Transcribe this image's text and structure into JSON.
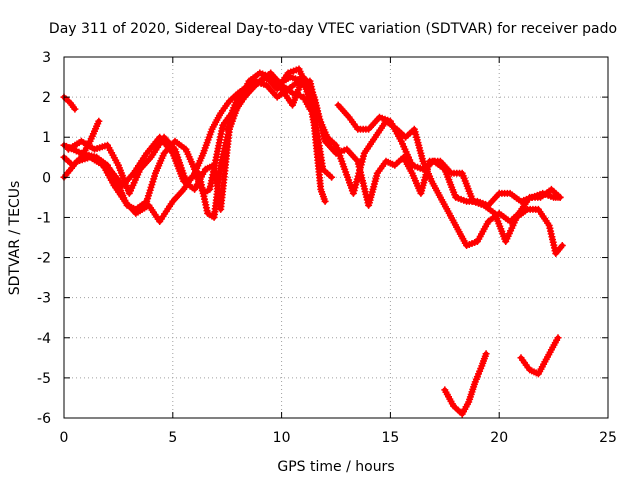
{
  "chart_data": {
    "type": "scatter",
    "title": "Day 311 of 2020, Sidereal Day-to-day VTEC variation (SDTVAR) for receiver pado",
    "xlabel": "GPS time / hours",
    "ylabel": "SDTVAR / TECUs",
    "xlim": [
      0,
      25
    ],
    "ylim": [
      -6,
      3
    ],
    "xticks": [
      0,
      5,
      10,
      15,
      20,
      25
    ],
    "yticks": [
      -6,
      -5,
      -4,
      -3,
      -2,
      -1,
      0,
      1,
      2,
      3
    ],
    "grid": true,
    "marker": "plus",
    "color": "#ff0000",
    "series": [
      {
        "name": "trace-1",
        "points": [
          [
            0.0,
            0.5
          ],
          [
            0.4,
            0.3
          ],
          [
            0.8,
            0.5
          ],
          [
            1.2,
            0.9
          ],
          [
            1.6,
            1.4
          ]
        ]
      },
      {
        "name": "trace-2",
        "points": [
          [
            0.0,
            2.0
          ],
          [
            0.3,
            1.85
          ],
          [
            0.5,
            1.7
          ]
        ]
      },
      {
        "name": "trace-3",
        "points": [
          [
            0.0,
            0.0
          ],
          [
            0.6,
            0.4
          ],
          [
            1.2,
            0.5
          ],
          [
            1.8,
            0.3
          ],
          [
            2.3,
            -0.2
          ],
          [
            2.8,
            -0.6
          ],
          [
            3.3,
            -0.9
          ],
          [
            3.9,
            -0.7
          ],
          [
            4.4,
            -1.1
          ],
          [
            5.0,
            -0.6
          ],
          [
            5.5,
            -0.3
          ],
          [
            6.0,
            0.1
          ],
          [
            6.4,
            0.6
          ],
          [
            6.8,
            1.2
          ],
          [
            7.2,
            1.6
          ],
          [
            7.6,
            1.9
          ],
          [
            8.0,
            2.1
          ],
          [
            8.5,
            2.3
          ],
          [
            9.0,
            2.4
          ],
          [
            9.5,
            2.6
          ],
          [
            10.0,
            2.3
          ],
          [
            10.5,
            2.1
          ],
          [
            11.0,
            2.0
          ],
          [
            11.3,
            1.7
          ]
        ]
      },
      {
        "name": "trace-4",
        "points": [
          [
            0.0,
            0.8
          ],
          [
            0.8,
            0.6
          ],
          [
            1.5,
            0.5
          ],
          [
            2.0,
            0.3
          ],
          [
            2.5,
            -0.2
          ],
          [
            2.9,
            -0.7
          ],
          [
            3.3,
            -0.8
          ],
          [
            3.8,
            -0.6
          ],
          [
            4.2,
            0.1
          ],
          [
            4.6,
            0.6
          ],
          [
            5.1,
            0.9
          ],
          [
            5.6,
            0.7
          ],
          [
            6.0,
            0.2
          ],
          [
            6.4,
            -0.4
          ],
          [
            6.7,
            -0.3
          ],
          [
            7.0,
            0.5
          ],
          [
            7.3,
            1.3
          ],
          [
            7.7,
            1.6
          ],
          [
            8.0,
            2.0
          ],
          [
            8.6,
            2.2
          ],
          [
            9.2,
            2.5
          ],
          [
            9.8,
            2.3
          ],
          [
            10.4,
            2.5
          ],
          [
            11.0,
            2.4
          ],
          [
            11.5,
            1.6
          ],
          [
            11.9,
            0.2
          ],
          [
            12.3,
            0.0
          ]
        ]
      },
      {
        "name": "trace-5",
        "points": [
          [
            0.2,
            0.7
          ],
          [
            0.8,
            0.9
          ],
          [
            1.4,
            0.7
          ],
          [
            2.0,
            0.8
          ],
          [
            2.5,
            0.3
          ],
          [
            3.0,
            -0.4
          ],
          [
            3.5,
            0.2
          ],
          [
            4.0,
            0.5
          ],
          [
            4.6,
            1.0
          ],
          [
            5.1,
            0.7
          ],
          [
            5.6,
            -0.1
          ],
          [
            6.2,
            0.1
          ],
          [
            6.6,
            -0.9
          ],
          [
            6.9,
            -1.0
          ],
          [
            7.2,
            0.3
          ],
          [
            7.5,
            1.0
          ],
          [
            7.8,
            1.6
          ],
          [
            8.3,
            2.0
          ],
          [
            8.8,
            2.3
          ],
          [
            9.3,
            2.5
          ],
          [
            9.8,
            2.2
          ],
          [
            10.3,
            2.6
          ],
          [
            10.8,
            2.7
          ],
          [
            11.2,
            2.2
          ],
          [
            11.5,
            1.3
          ],
          [
            11.8,
            -0.3
          ],
          [
            12.0,
            -0.6
          ]
        ]
      },
      {
        "name": "trace-6",
        "points": [
          [
            1.5,
            0.5
          ],
          [
            2.1,
            0.2
          ],
          [
            2.7,
            -0.2
          ],
          [
            3.2,
            0.1
          ],
          [
            3.8,
            0.6
          ],
          [
            4.4,
            1.0
          ],
          [
            5.0,
            0.6
          ],
          [
            5.5,
            -0.1
          ],
          [
            6.0,
            -0.3
          ],
          [
            6.5,
            0.2
          ],
          [
            6.9,
            0.3
          ],
          [
            7.2,
            -0.8
          ],
          [
            7.6,
            1.2
          ],
          [
            8.0,
            1.8
          ],
          [
            8.5,
            2.4
          ],
          [
            9.0,
            2.6
          ],
          [
            9.5,
            2.5
          ],
          [
            10.0,
            2.2
          ],
          [
            10.5,
            1.8
          ],
          [
            11.0,
            2.5
          ],
          [
            11.5,
            2.0
          ],
          [
            12.0,
            0.9
          ],
          [
            12.5,
            0.6
          ],
          [
            13.0,
            0.7
          ],
          [
            13.5,
            0.4
          ],
          [
            14.0,
            -0.7
          ],
          [
            14.4,
            0.1
          ],
          [
            14.8,
            0.4
          ],
          [
            15.2,
            0.3
          ],
          [
            15.6,
            0.5
          ],
          [
            16.0,
            0.1
          ],
          [
            16.4,
            -0.4
          ],
          [
            16.8,
            0.4
          ],
          [
            17.3,
            0.4
          ],
          [
            17.8,
            0.1
          ],
          [
            18.3,
            0.1
          ],
          [
            18.8,
            -0.6
          ],
          [
            19.3,
            -0.7
          ],
          [
            19.8,
            -0.9
          ],
          [
            20.3,
            -1.6
          ],
          [
            20.8,
            -1.0
          ],
          [
            21.3,
            -0.8
          ],
          [
            21.8,
            -0.8
          ],
          [
            22.3,
            -1.2
          ],
          [
            22.6,
            -1.9
          ],
          [
            22.9,
            -1.7
          ]
        ]
      },
      {
        "name": "trace-7",
        "points": [
          [
            7.5,
            1.2
          ],
          [
            8.0,
            1.8
          ],
          [
            8.7,
            2.4
          ],
          [
            9.3,
            2.3
          ],
          [
            9.8,
            2.0
          ],
          [
            10.3,
            2.2
          ],
          [
            10.8,
            2.4
          ],
          [
            11.3,
            2.4
          ],
          [
            11.7,
            1.5
          ],
          [
            12.1,
            1.0
          ],
          [
            12.5,
            0.8
          ],
          [
            12.9,
            0.2
          ],
          [
            13.3,
            -0.4
          ],
          [
            13.8,
            0.6
          ],
          [
            14.3,
            1.0
          ],
          [
            14.8,
            1.4
          ],
          [
            15.3,
            1.2
          ],
          [
            15.7,
            1.0
          ],
          [
            16.1,
            1.2
          ],
          [
            16.5,
            0.4
          ],
          [
            16.9,
            -0.1
          ],
          [
            17.3,
            -0.5
          ],
          [
            17.7,
            -0.9
          ],
          [
            18.1,
            -1.3
          ],
          [
            18.5,
            -1.7
          ],
          [
            19.0,
            -1.6
          ],
          [
            19.5,
            -1.1
          ],
          [
            20.0,
            -0.9
          ],
          [
            20.5,
            -1.1
          ],
          [
            20.9,
            -0.9
          ],
          [
            21.4,
            -0.5
          ],
          [
            21.9,
            -0.5
          ],
          [
            22.4,
            -0.3
          ],
          [
            22.8,
            -0.5
          ]
        ]
      },
      {
        "name": "trace-8",
        "points": [
          [
            12.6,
            1.8
          ],
          [
            13.1,
            1.5
          ],
          [
            13.5,
            1.2
          ],
          [
            14.0,
            1.2
          ],
          [
            14.5,
            1.5
          ],
          [
            15.0,
            1.4
          ],
          [
            15.5,
            0.9
          ],
          [
            16.0,
            0.3
          ],
          [
            16.5,
            0.2
          ],
          [
            17.0,
            0.4
          ],
          [
            17.5,
            0.2
          ],
          [
            18.0,
            -0.5
          ],
          [
            18.5,
            -0.6
          ],
          [
            19.0,
            -0.6
          ],
          [
            19.5,
            -0.7
          ],
          [
            20.0,
            -0.4
          ],
          [
            20.5,
            -0.4
          ],
          [
            21.0,
            -0.6
          ],
          [
            21.5,
            -0.5
          ],
          [
            22.0,
            -0.4
          ],
          [
            22.5,
            -0.5
          ],
          [
            22.8,
            -0.5
          ]
        ]
      },
      {
        "name": "trace-9",
        "points": [
          [
            17.5,
            -5.3
          ],
          [
            17.9,
            -5.7
          ],
          [
            18.3,
            -5.9
          ],
          [
            18.6,
            -5.6
          ],
          [
            18.9,
            -5.1
          ],
          [
            19.2,
            -4.7
          ],
          [
            19.4,
            -4.4
          ]
        ]
      },
      {
        "name": "trace-10",
        "points": [
          [
            21.0,
            -4.5
          ],
          [
            21.4,
            -4.8
          ],
          [
            21.8,
            -4.9
          ],
          [
            22.1,
            -4.6
          ],
          [
            22.4,
            -4.3
          ],
          [
            22.7,
            -4.0
          ]
        ]
      }
    ]
  }
}
